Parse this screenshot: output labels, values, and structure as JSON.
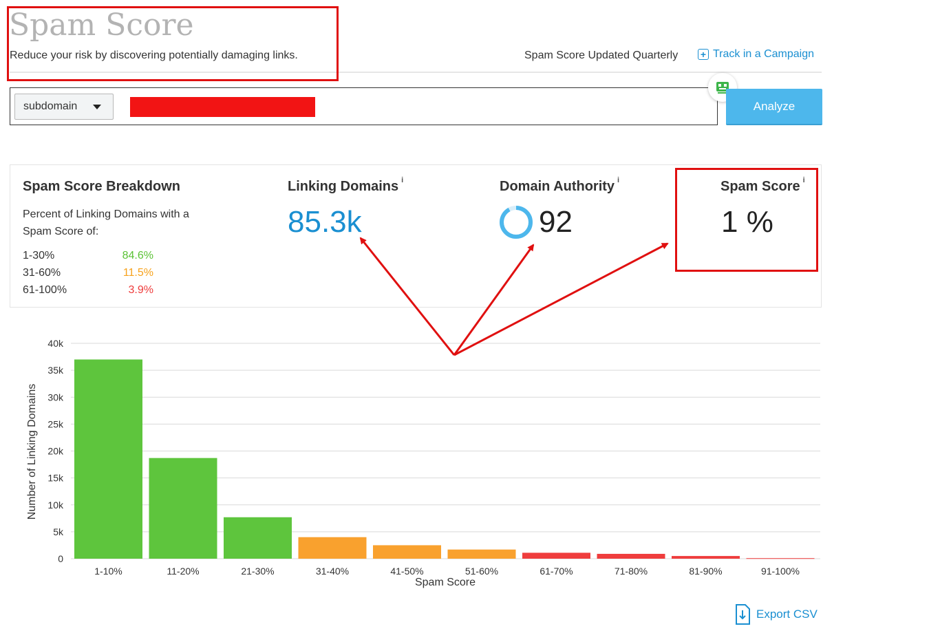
{
  "header": {
    "title": "Spam Score",
    "subtitle": "Reduce your risk by discovering potentially damaging links.",
    "updated_note": "Spam Score Updated Quarterly",
    "track_link": "Track in a Campaign"
  },
  "search": {
    "scope_value": "subdomain",
    "analyze_label": "Analyze"
  },
  "breakdown": {
    "title": "Spam Score Breakdown",
    "description": "Percent of Linking Domains with a Spam Score of:",
    "rows": [
      {
        "range": "1-30%",
        "percent": "84.6%",
        "color": "#5bc236"
      },
      {
        "range": "31-60%",
        "percent": "11.5%",
        "color": "#f7a21b"
      },
      {
        "range": "61-100%",
        "percent": "3.9%",
        "color": "#ee3b3b"
      }
    ]
  },
  "stats": {
    "linking_domains": {
      "label": "Linking Domains",
      "value": "85.3k",
      "info": "i"
    },
    "domain_authority": {
      "label": "Domain Authority",
      "value": "92",
      "info": "i",
      "level": 0.92
    },
    "spam_score": {
      "label": "Spam Score",
      "value": "1 %",
      "info": "i"
    }
  },
  "chart_data": {
    "type": "bar",
    "title": "",
    "xlabel": "Spam Score",
    "ylabel": "Number of Linking Domains",
    "categories": [
      "1-10%",
      "11-20%",
      "21-30%",
      "31-40%",
      "41-50%",
      "51-60%",
      "61-70%",
      "71-80%",
      "81-90%",
      "91-100%"
    ],
    "values": [
      37000,
      18700,
      7700,
      4000,
      2500,
      1700,
      1100,
      900,
      500,
      100
    ],
    "bar_colors": [
      "#5ec53d",
      "#5ec53d",
      "#5ec53d",
      "#f9a12e",
      "#f9a12e",
      "#f9a12e",
      "#ef3d3d",
      "#ef3d3d",
      "#ef3d3d",
      "#ef3d3d"
    ],
    "ylim": [
      0,
      40000
    ],
    "yticks": [
      "0",
      "5k",
      "10k",
      "15k",
      "20k",
      "25k",
      "30k",
      "35k",
      "40k"
    ],
    "grid": true
  },
  "footer": {
    "export_label": "Export CSV"
  },
  "colors": {
    "accent": "#1a8fd1",
    "button": "#4db7ec",
    "highlight": "#e01010"
  }
}
